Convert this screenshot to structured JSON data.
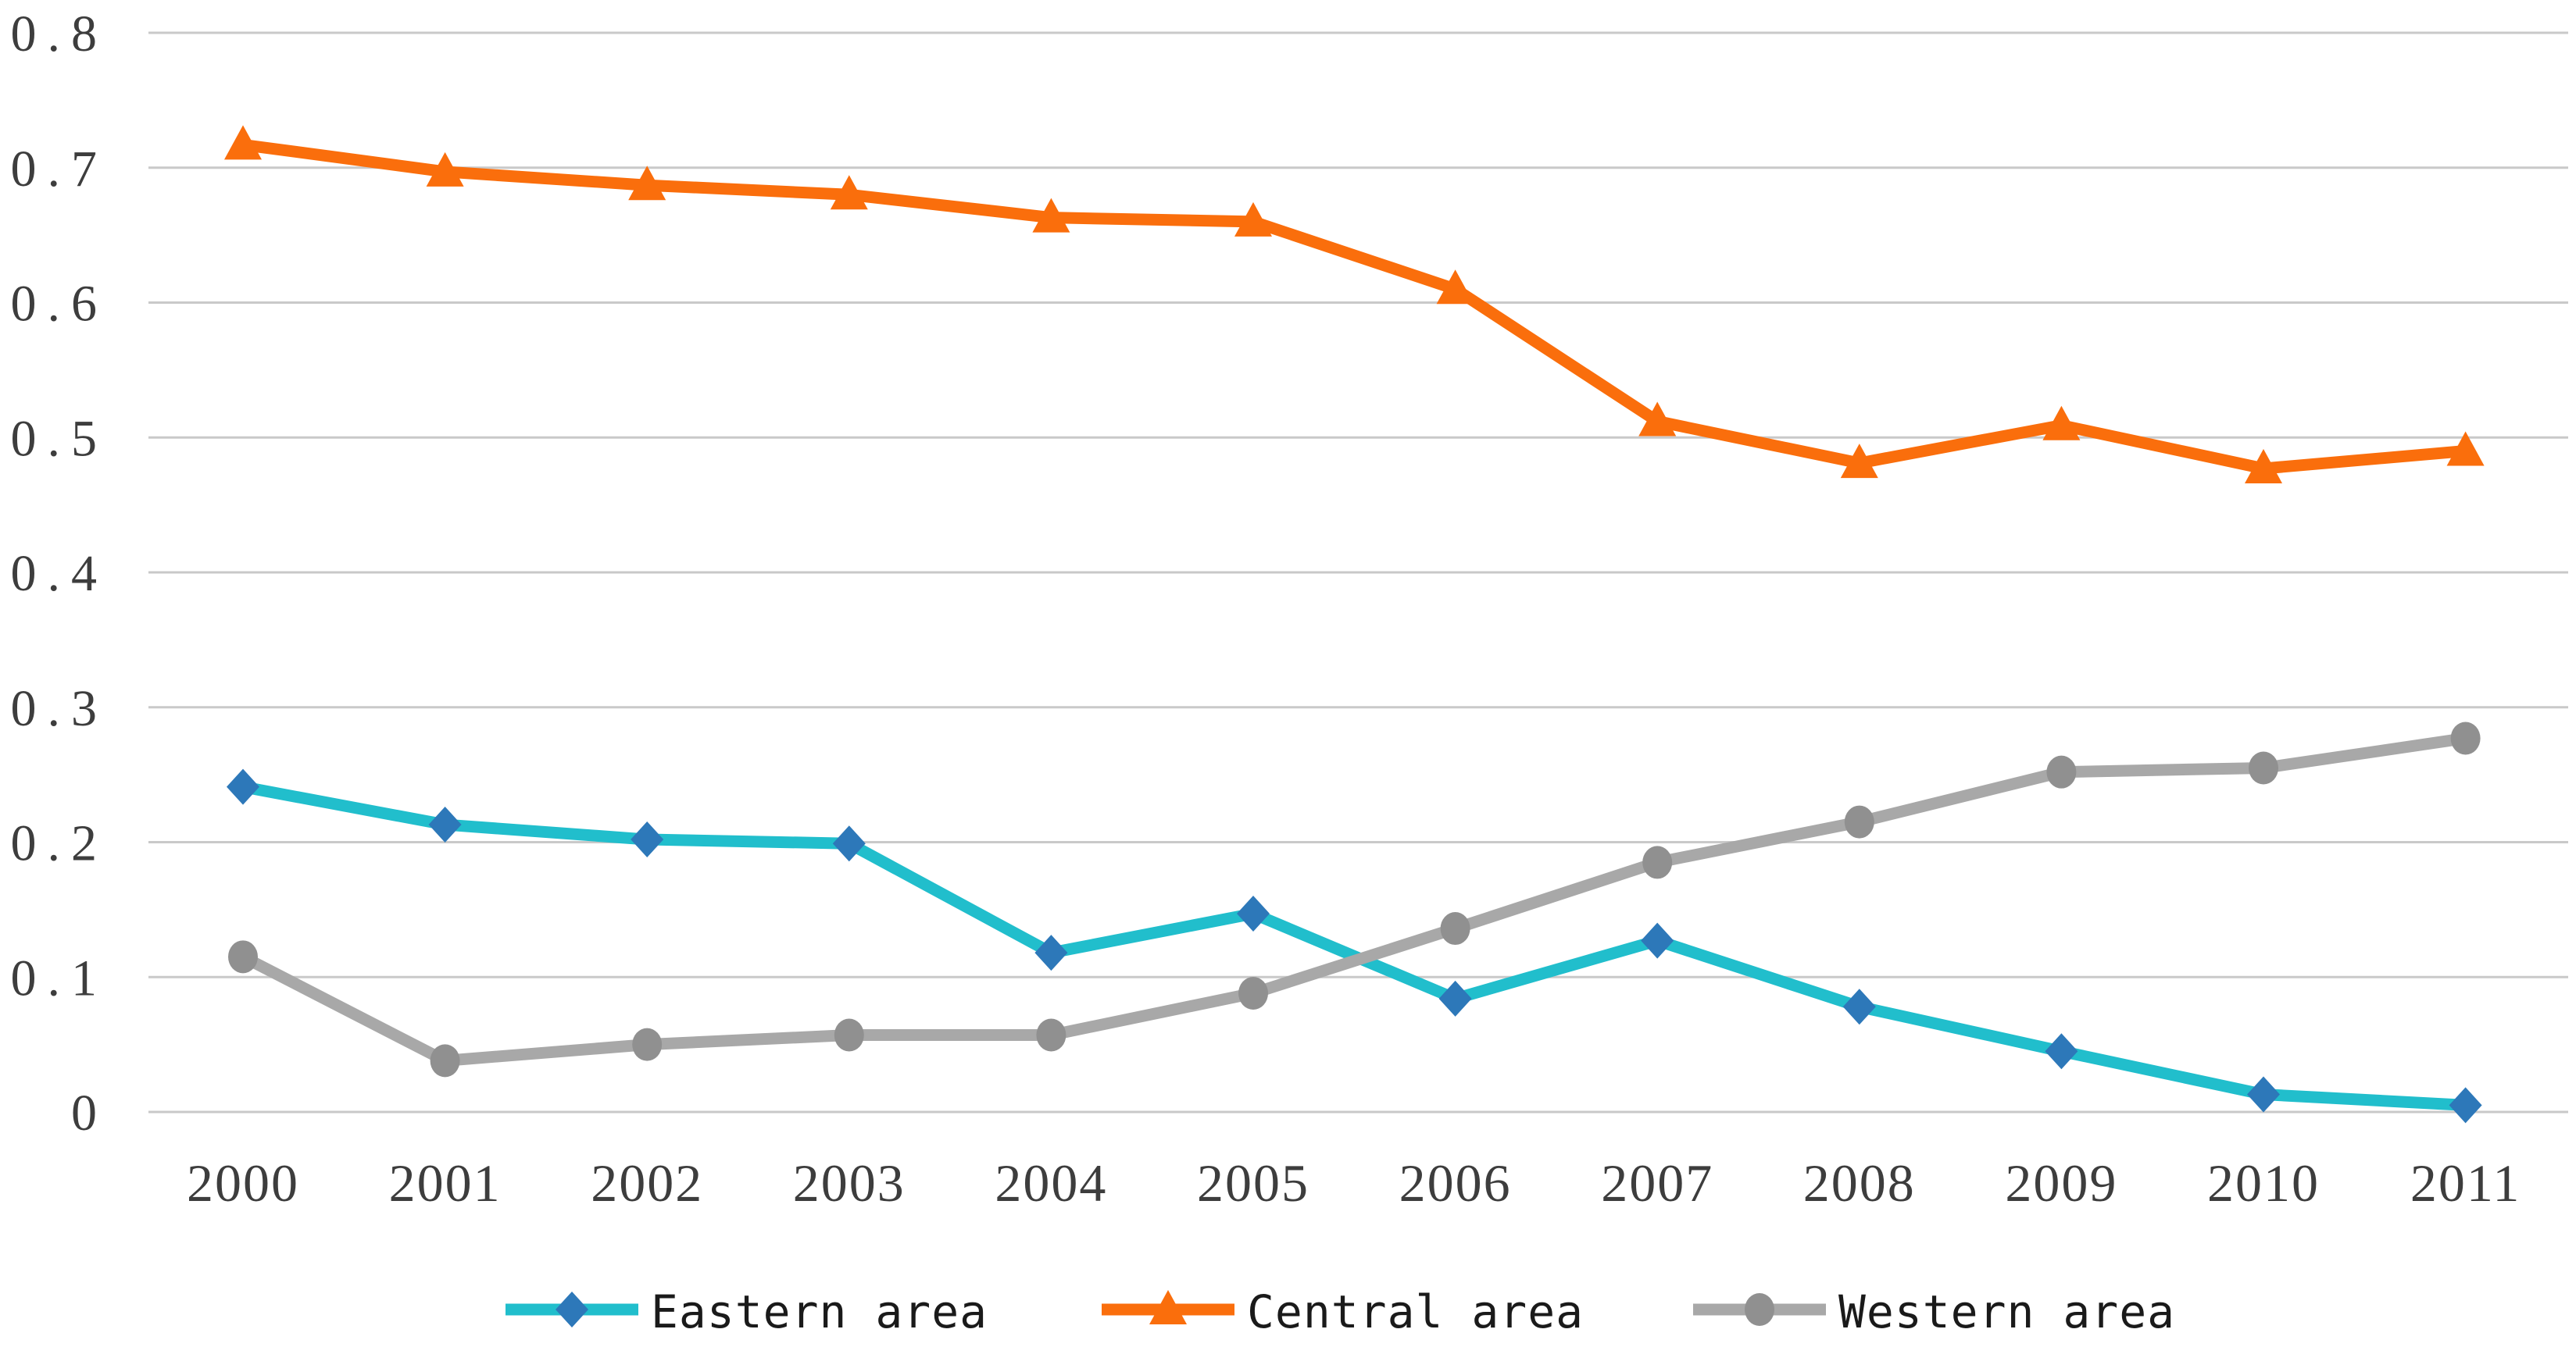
{
  "chart": {
    "background": "#ffffff",
    "text_color": "#3d3d3d",
    "gridline_color": "#c9c9c9"
  },
  "chart_data": {
    "type": "line",
    "title": "",
    "xlabel": "",
    "ylabel": "",
    "x": [
      "2000",
      "2001",
      "2002",
      "2003",
      "2004",
      "2005",
      "2006",
      "2007",
      "2008",
      "2009",
      "2010",
      "2011"
    ],
    "ylim": [
      0,
      0.8
    ],
    "yticks": [
      0,
      0.1,
      0.2,
      0.3,
      0.4,
      0.5,
      0.6,
      0.7,
      0.8
    ],
    "ytick_labels": [
      "0",
      "0.1",
      "0.2",
      "0.3",
      "0.4",
      "0.5",
      "0.6",
      "0.7",
      "0.8"
    ],
    "grid": true,
    "legend_position": "bottom",
    "series": [
      {
        "name": "Eastern area",
        "marker": "diamond",
        "line_color": "#21becc",
        "marker_color": "#2d78b9",
        "values": [
          0.241,
          0.213,
          0.202,
          0.199,
          0.118,
          0.147,
          0.084,
          0.127,
          0.078,
          0.045,
          0.013,
          0.005
        ]
      },
      {
        "name": "Central area",
        "marker": "triangle",
        "line_color": "#fa6e0c",
        "marker_color": "#fa6e0c",
        "values": [
          0.717,
          0.697,
          0.687,
          0.68,
          0.663,
          0.66,
          0.61,
          0.512,
          0.481,
          0.509,
          0.477,
          0.49
        ]
      },
      {
        "name": "Western area",
        "marker": "circle",
        "line_color": "#a8a8a8",
        "marker_color": "#909090",
        "values": [
          0.115,
          0.038,
          0.05,
          0.057,
          0.057,
          0.088,
          0.136,
          0.185,
          0.215,
          0.252,
          0.255,
          0.277
        ]
      }
    ]
  }
}
